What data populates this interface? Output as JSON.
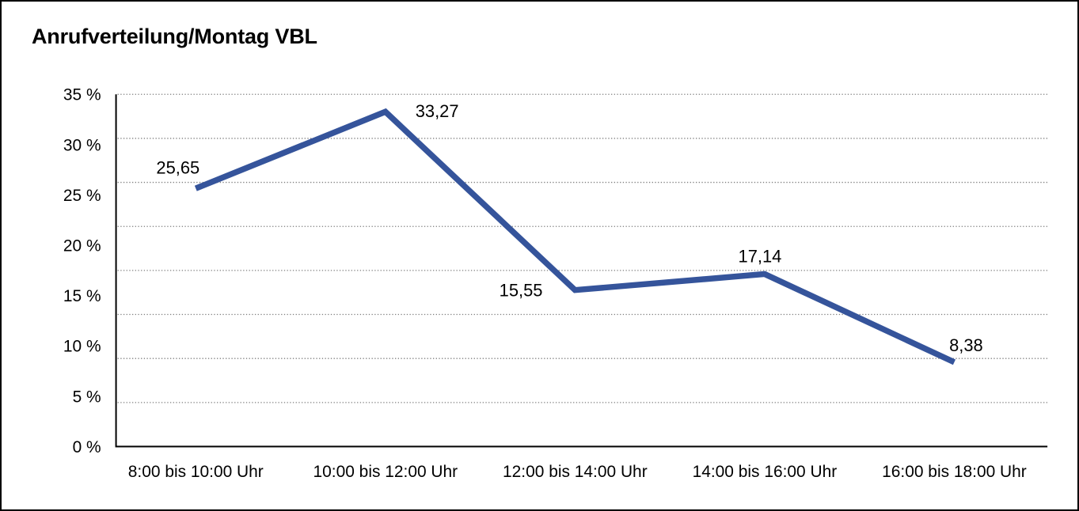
{
  "window": {
    "background": "#ffffff",
    "border_color": "#000000"
  },
  "chart_data": {
    "type": "line",
    "title": "Anrufverteilung/Montag VBL",
    "categories": [
      "8:00 bis 10:00 Uhr",
      "10:00 bis 12:00 Uhr",
      "12:00 bis 14:00 Uhr",
      "14:00 bis 16:00 Uhr",
      "16:00 bis 18:00 Uhr"
    ],
    "values": [
      25.65,
      33.27,
      15.55,
      17.14,
      8.38
    ],
    "value_labels": [
      "25,65",
      "33,27",
      "15,55",
      "17,14",
      "8,38"
    ],
    "y_ticks": [
      "35 %",
      "30 %",
      "25 %",
      "20 %",
      "15 %",
      "10 %",
      "5 %",
      "0 %"
    ],
    "y_tick_values": [
      35,
      30,
      25,
      20,
      15,
      10,
      5,
      0
    ],
    "ylim": [
      0,
      35
    ],
    "xlabel": "",
    "ylabel": "",
    "grid": "horizontal-dotted",
    "gridline_rows": 8,
    "legend": "none",
    "line_color": "#35549b",
    "axis_color": "#000000",
    "grid_color": "#7d7d7d",
    "text_color": "#000000",
    "label_placements": [
      "above-left",
      "right",
      "left",
      "above",
      "above-right"
    ]
  }
}
